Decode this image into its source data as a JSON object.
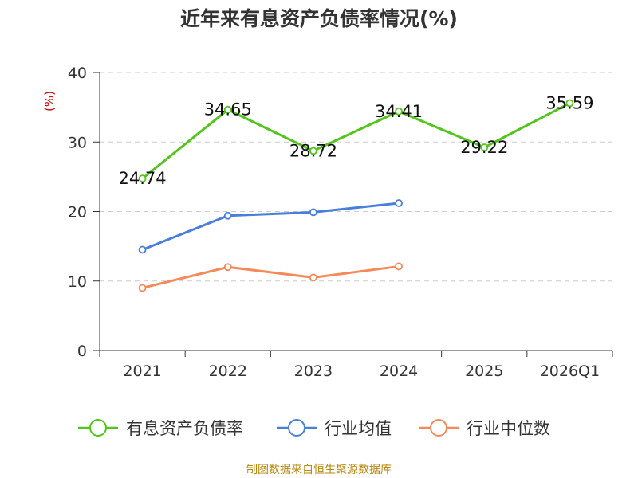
{
  "chart_data": {
    "type": "line",
    "title": "近年来有息资产负债率情况(%)",
    "ylabel": "(%)",
    "xlabel": "",
    "ylim": [
      0,
      40
    ],
    "yticks": [
      0,
      10,
      20,
      30,
      40
    ],
    "categories": [
      "2021",
      "2022",
      "2023",
      "2024",
      "2025",
      "2026Q1"
    ],
    "grid": true,
    "legend_position": "bottom",
    "series": [
      {
        "name": "有息资产负债率",
        "color": "#52c41a",
        "values": [
          24.74,
          34.65,
          28.72,
          34.41,
          29.22,
          35.59
        ],
        "labels": [
          "24.74",
          "34.65",
          "28.72",
          "34.41",
          "29.22",
          "35.59"
        ]
      },
      {
        "name": "行业均值",
        "color": "#4a7fd9",
        "values": [
          14.5,
          19.4,
          19.9,
          21.2,
          null,
          null
        ]
      },
      {
        "name": "行业中位数",
        "color": "#f5895a",
        "values": [
          9.0,
          12.0,
          10.5,
          12.1,
          null,
          null
        ]
      }
    ]
  },
  "source": "制图数据来自恒生聚源数据库"
}
